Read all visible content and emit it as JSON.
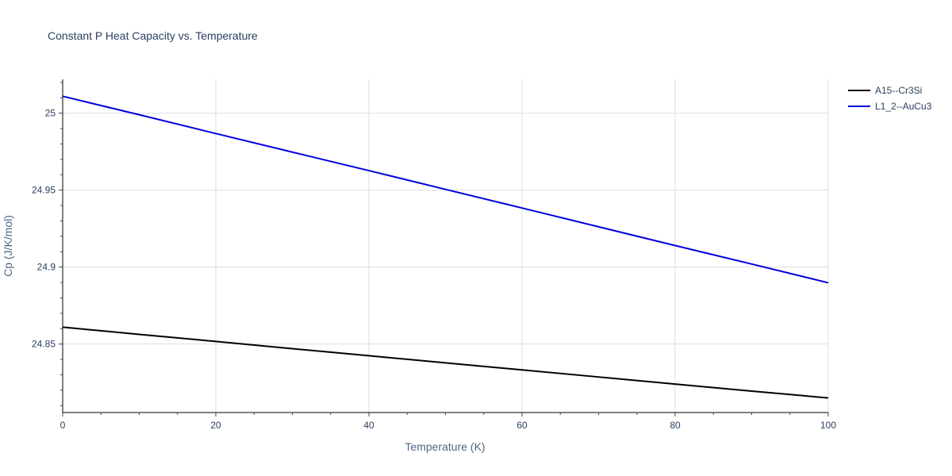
{
  "chart_data": {
    "type": "line",
    "title": "Constant P Heat Capacity vs. Temperature",
    "xlabel": "Temperature (K)",
    "ylabel": "Cp (J/K/mol)",
    "xlim": [
      0,
      100
    ],
    "ylim": [
      24.8055,
      25.022
    ],
    "x_ticks": [
      0,
      20,
      40,
      60,
      80,
      100
    ],
    "y_ticks": [
      24.85,
      24.9,
      24.95,
      25.0
    ],
    "y_tick_labels": [
      "24.85",
      "24.9",
      "24.95",
      "25"
    ],
    "grid": true,
    "legend_position": "top-right",
    "series": [
      {
        "name": "A15--Cr3Si",
        "color": "#000000",
        "x": [
          0,
          10,
          20,
          30,
          40,
          50,
          60,
          70,
          80,
          90,
          100
        ],
        "y": [
          24.861,
          24.8563,
          24.8517,
          24.847,
          24.8424,
          24.8378,
          24.8332,
          24.8286,
          24.824,
          24.8194,
          24.815
        ]
      },
      {
        "name": "L1_2--AuCu3",
        "color": "#0000dd",
        "x": [
          0,
          10,
          20,
          30,
          40,
          50,
          60,
          70,
          80,
          90,
          100
        ],
        "y": [
          25.011,
          24.999,
          24.9868,
          24.9747,
          24.9627,
          24.9505,
          24.9384,
          24.9262,
          24.914,
          24.902,
          24.8898
        ]
      }
    ]
  }
}
